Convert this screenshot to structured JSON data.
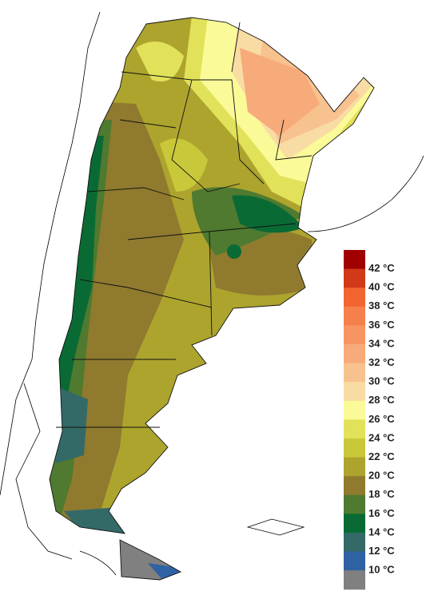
{
  "legend": {
    "labels": [
      "42 °C",
      "40 °C",
      "38 °C",
      "36 °C",
      "34 °C",
      "32 °C",
      "30 °C",
      "28 °C",
      "26 °C",
      "24 °C",
      "22 °C",
      "20 °C",
      "18 °C",
      "16 °C",
      "14 °C",
      "12 °C",
      "10 °C"
    ],
    "colors": [
      "#a00000",
      "#d03a18",
      "#f26430",
      "#f5804c",
      "#f69562",
      "#f7aa7a",
      "#f8c28f",
      "#f8dca4",
      "#fafa98",
      "#e2e25a",
      "#c9c83a",
      "#ada42e",
      "#8f7a2e",
      "#4f7a30",
      "#0a6a34",
      "#336a68",
      "#2f62a2",
      "#808080"
    ]
  }
}
